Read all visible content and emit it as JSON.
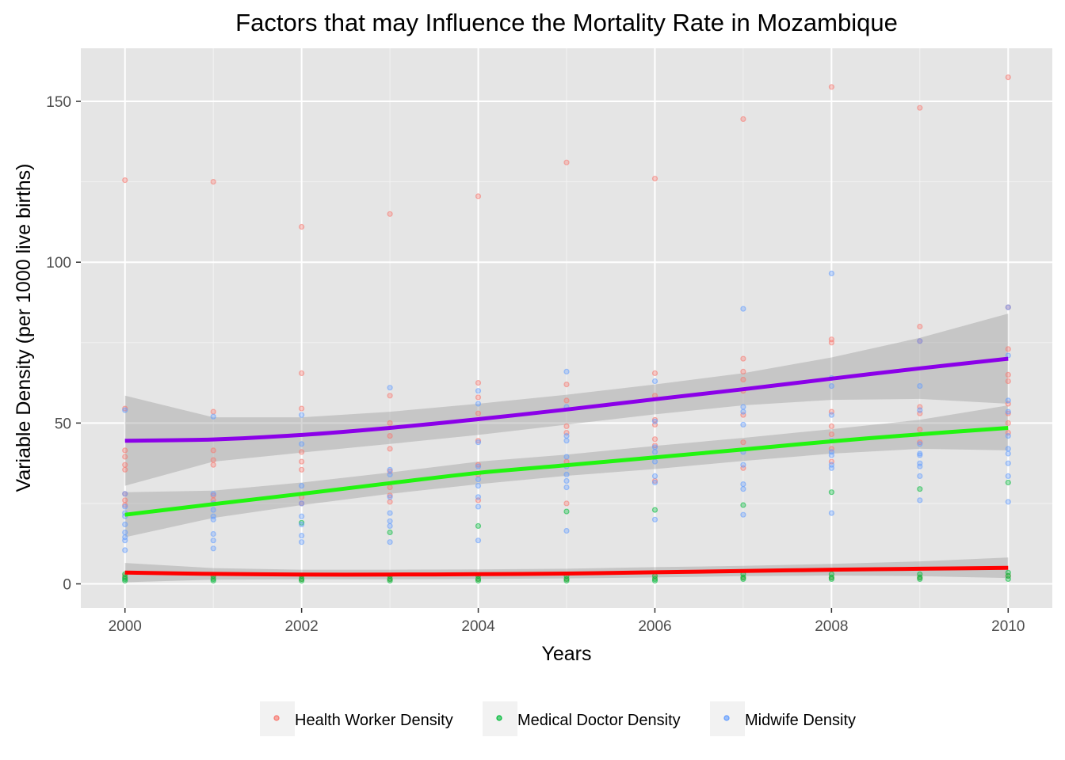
{
  "chart_data": {
    "type": "scatter",
    "title": "Factors that may Influence the Mortality Rate in Mozambique",
    "xlabel": "Years",
    "ylabel": "Variable Density (per 1000 live births)",
    "xlim": [
      1999.5,
      2010.5
    ],
    "ylim": [
      -7.5,
      166.5
    ],
    "x_ticks": [
      2000,
      2002,
      2004,
      2006,
      2008,
      2010
    ],
    "y_ticks": [
      0,
      50,
      100,
      150
    ],
    "grid": true,
    "legend_position": "bottom",
    "panel_background": "#e5e5e5",
    "series": [
      {
        "name": "Health Worker Density",
        "color": "#f8766d",
        "points": [
          [
            2000,
            125.5
          ],
          [
            2000,
            54.5
          ],
          [
            2000,
            41.5
          ],
          [
            2000,
            39.5
          ],
          [
            2000,
            37
          ],
          [
            2000,
            35.5
          ],
          [
            2000,
            28
          ],
          [
            2000,
            26
          ],
          [
            2000,
            24.5
          ],
          [
            2000,
            2.5
          ],
          [
            2001,
            125
          ],
          [
            2001,
            53.5
          ],
          [
            2001,
            41.5
          ],
          [
            2001,
            38.5
          ],
          [
            2001,
            37
          ],
          [
            2001,
            27.5
          ],
          [
            2001,
            26
          ],
          [
            2001,
            2
          ],
          [
            2002,
            111
          ],
          [
            2002,
            65.5
          ],
          [
            2002,
            54.5
          ],
          [
            2002,
            41
          ],
          [
            2002,
            38
          ],
          [
            2002,
            35.5
          ],
          [
            2002,
            27
          ],
          [
            2002,
            25
          ],
          [
            2002,
            1.5
          ],
          [
            2003,
            115
          ],
          [
            2003,
            58.5
          ],
          [
            2003,
            50
          ],
          [
            2003,
            46
          ],
          [
            2003,
            42
          ],
          [
            2003,
            35
          ],
          [
            2003,
            30
          ],
          [
            2003,
            27.5
          ],
          [
            2003,
            25.5
          ],
          [
            2003,
            1.5
          ],
          [
            2004,
            120.5
          ],
          [
            2004,
            62.5
          ],
          [
            2004,
            58
          ],
          [
            2004,
            53
          ],
          [
            2004,
            44.5
          ],
          [
            2004,
            37
          ],
          [
            2004,
            34
          ],
          [
            2004,
            26
          ],
          [
            2004,
            1.5
          ],
          [
            2005,
            131
          ],
          [
            2005,
            62
          ],
          [
            2005,
            57
          ],
          [
            2005,
            49
          ],
          [
            2005,
            47
          ],
          [
            2005,
            38
          ],
          [
            2005,
            25
          ],
          [
            2005,
            1.5
          ],
          [
            2006,
            126
          ],
          [
            2006,
            65.5
          ],
          [
            2006,
            58.5
          ],
          [
            2006,
            51
          ],
          [
            2006,
            49.5
          ],
          [
            2006,
            45
          ],
          [
            2006,
            43
          ],
          [
            2006,
            32
          ],
          [
            2006,
            2
          ],
          [
            2007,
            144.5
          ],
          [
            2007,
            70
          ],
          [
            2007,
            66
          ],
          [
            2007,
            63.5
          ],
          [
            2007,
            60
          ],
          [
            2007,
            52.5
          ],
          [
            2007,
            44
          ],
          [
            2007,
            36
          ],
          [
            2007,
            2
          ],
          [
            2008,
            154.5
          ],
          [
            2008,
            76
          ],
          [
            2008,
            75
          ],
          [
            2008,
            53.5
          ],
          [
            2008,
            49
          ],
          [
            2008,
            46.5
          ],
          [
            2008,
            42
          ],
          [
            2008,
            38
          ],
          [
            2008,
            2
          ],
          [
            2009,
            148
          ],
          [
            2009,
            80
          ],
          [
            2009,
            75.5
          ],
          [
            2009,
            55
          ],
          [
            2009,
            53
          ],
          [
            2009,
            48
          ],
          [
            2009,
            44
          ],
          [
            2009,
            2
          ],
          [
            2010,
            157.5
          ],
          [
            2010,
            86
          ],
          [
            2010,
            73
          ],
          [
            2010,
            65
          ],
          [
            2010,
            63
          ],
          [
            2010,
            56
          ],
          [
            2010,
            53
          ],
          [
            2010,
            50
          ],
          [
            2010,
            47
          ],
          [
            2010,
            2.5
          ]
        ]
      },
      {
        "name": "Medical Doctor Density",
        "color": "#00ba38",
        "points": [
          [
            2000,
            3
          ],
          [
            2000,
            2
          ],
          [
            2000,
            1.5
          ],
          [
            2000,
            1
          ],
          [
            2001,
            2.5
          ],
          [
            2001,
            1.5
          ],
          [
            2001,
            1
          ],
          [
            2002,
            19
          ],
          [
            2002,
            2.5
          ],
          [
            2002,
            1.5
          ],
          [
            2002,
            1
          ],
          [
            2003,
            16
          ],
          [
            2003,
            2.5
          ],
          [
            2003,
            1.5
          ],
          [
            2003,
            1
          ],
          [
            2004,
            18
          ],
          [
            2004,
            2.5
          ],
          [
            2004,
            1.5
          ],
          [
            2004,
            1
          ],
          [
            2005,
            22.5
          ],
          [
            2005,
            2.5
          ],
          [
            2005,
            1.5
          ],
          [
            2005,
            1
          ],
          [
            2006,
            23
          ],
          [
            2006,
            2.5
          ],
          [
            2006,
            1.5
          ],
          [
            2006,
            1
          ],
          [
            2007,
            24.5
          ],
          [
            2007,
            3
          ],
          [
            2007,
            2
          ],
          [
            2007,
            1.5
          ],
          [
            2008,
            28.5
          ],
          [
            2008,
            3
          ],
          [
            2008,
            2
          ],
          [
            2008,
            1.5
          ],
          [
            2009,
            29.5
          ],
          [
            2009,
            3
          ],
          [
            2009,
            2
          ],
          [
            2009,
            1.5
          ],
          [
            2010,
            31.5
          ],
          [
            2010,
            3.5
          ],
          [
            2010,
            2.5
          ],
          [
            2010,
            1.5
          ]
        ]
      },
      {
        "name": "Midwife Density",
        "color": "#619cff",
        "points": [
          [
            2000,
            54
          ],
          [
            2000,
            28
          ],
          [
            2000,
            24
          ],
          [
            2000,
            22
          ],
          [
            2000,
            21
          ],
          [
            2000,
            18.5
          ],
          [
            2000,
            16
          ],
          [
            2000,
            14.5
          ],
          [
            2000,
            13.5
          ],
          [
            2000,
            10.5
          ],
          [
            2001,
            52
          ],
          [
            2001,
            28
          ],
          [
            2001,
            25
          ],
          [
            2001,
            23
          ],
          [
            2001,
            21
          ],
          [
            2001,
            20
          ],
          [
            2001,
            15.5
          ],
          [
            2001,
            13.5
          ],
          [
            2001,
            11
          ],
          [
            2002,
            52.5
          ],
          [
            2002,
            43.5
          ],
          [
            2002,
            30.5
          ],
          [
            2002,
            25
          ],
          [
            2002,
            21
          ],
          [
            2002,
            18.5
          ],
          [
            2002,
            15
          ],
          [
            2002,
            13
          ],
          [
            2003,
            61
          ],
          [
            2003,
            35.5
          ],
          [
            2003,
            34
          ],
          [
            2003,
            27
          ],
          [
            2003,
            22
          ],
          [
            2003,
            19.5
          ],
          [
            2003,
            18
          ],
          [
            2003,
            13
          ],
          [
            2004,
            60
          ],
          [
            2004,
            56
          ],
          [
            2004,
            44
          ],
          [
            2004,
            36.5
          ],
          [
            2004,
            32.5
          ],
          [
            2004,
            30.5
          ],
          [
            2004,
            27
          ],
          [
            2004,
            24
          ],
          [
            2004,
            13.5
          ],
          [
            2005,
            66
          ],
          [
            2005,
            55
          ],
          [
            2005,
            46
          ],
          [
            2005,
            44.5
          ],
          [
            2005,
            39.5
          ],
          [
            2005,
            36.5
          ],
          [
            2005,
            34
          ],
          [
            2005,
            32
          ],
          [
            2005,
            30
          ],
          [
            2005,
            16.5
          ],
          [
            2006,
            63
          ],
          [
            2006,
            50.5
          ],
          [
            2006,
            42.5
          ],
          [
            2006,
            41
          ],
          [
            2006,
            38
          ],
          [
            2006,
            33.5
          ],
          [
            2006,
            31.5
          ],
          [
            2006,
            20
          ],
          [
            2007,
            85.5
          ],
          [
            2007,
            55
          ],
          [
            2007,
            53.5
          ],
          [
            2007,
            49.5
          ],
          [
            2007,
            41
          ],
          [
            2007,
            37
          ],
          [
            2007,
            31
          ],
          [
            2007,
            29.5
          ],
          [
            2007,
            21.5
          ],
          [
            2008,
            96.5
          ],
          [
            2008,
            64
          ],
          [
            2008,
            61.5
          ],
          [
            2008,
            52.5
          ],
          [
            2008,
            44.5
          ],
          [
            2008,
            41
          ],
          [
            2008,
            40
          ],
          [
            2008,
            37
          ],
          [
            2008,
            36
          ],
          [
            2008,
            22
          ],
          [
            2009,
            75.5
          ],
          [
            2009,
            61.5
          ],
          [
            2009,
            54
          ],
          [
            2009,
            43.5
          ],
          [
            2009,
            40.5
          ],
          [
            2009,
            40
          ],
          [
            2009,
            37.5
          ],
          [
            2009,
            36.5
          ],
          [
            2009,
            33.5
          ],
          [
            2009,
            26
          ],
          [
            2010,
            86
          ],
          [
            2010,
            71
          ],
          [
            2010,
            57
          ],
          [
            2010,
            53.5
          ],
          [
            2010,
            46
          ],
          [
            2010,
            42
          ],
          [
            2010,
            40.5
          ],
          [
            2010,
            37.5
          ],
          [
            2010,
            33.5
          ],
          [
            2010,
            25.5
          ]
        ]
      }
    ],
    "trend_lines": [
      {
        "color": "#8b00e8",
        "x": [
          2000,
          2001,
          2002,
          2003,
          2004,
          2005,
          2006,
          2007,
          2008,
          2009,
          2010
        ],
        "y": [
          44.5,
          44.9,
          46.3,
          48.5,
          51.2,
          54.2,
          57.4,
          60.5,
          63.8,
          67.0,
          70.0
        ],
        "band_lower": [
          30.5,
          38.0,
          40.8,
          43.5,
          46.3,
          49.5,
          52.7,
          55.5,
          57.2,
          57.5,
          56.0
        ],
        "band_upper": [
          58.5,
          51.8,
          51.8,
          53.5,
          56.0,
          58.8,
          62.0,
          65.5,
          70.4,
          76.5,
          84.0
        ]
      },
      {
        "color": "#22f410",
        "x": [
          2000,
          2001,
          2002,
          2003,
          2004,
          2005,
          2006,
          2007,
          2008,
          2009,
          2010
        ],
        "y": [
          21.5,
          24.8,
          28.0,
          31.3,
          34.5,
          36.9,
          39.3,
          41.8,
          44.3,
          46.5,
          48.5
        ],
        "band_lower": [
          14.5,
          20.5,
          24.5,
          28.0,
          31.0,
          33.6,
          35.7,
          38.2,
          40.5,
          42.0,
          41.5
        ],
        "band_upper": [
          28.5,
          29.0,
          31.5,
          34.6,
          38.0,
          40.2,
          42.9,
          45.4,
          48.1,
          51.0,
          55.5
        ]
      },
      {
        "color": "#ff0000",
        "x": [
          2000,
          2001,
          2002,
          2003,
          2004,
          2005,
          2006,
          2007,
          2008,
          2009,
          2010
        ],
        "y": [
          3.5,
          3.1,
          2.9,
          2.9,
          3.0,
          3.2,
          3.6,
          4.0,
          4.4,
          4.7,
          5.0
        ],
        "band_lower": [
          0.5,
          1.3,
          1.4,
          1.4,
          1.5,
          1.7,
          2.0,
          2.4,
          2.6,
          2.4,
          1.8
        ],
        "band_upper": [
          6.5,
          4.9,
          4.4,
          4.4,
          4.5,
          4.7,
          5.2,
          5.6,
          6.2,
          7.0,
          8.2
        ]
      }
    ]
  }
}
